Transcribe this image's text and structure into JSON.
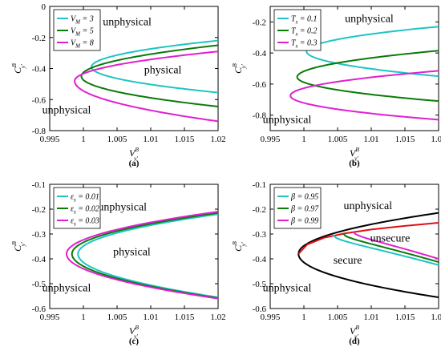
{
  "chart_data": [
    {
      "type": "line",
      "panel_label": "(a)",
      "xlabel": "V",
      "xlabel_sup": "B",
      "xlabel_sub": "y′",
      "ylabel": "C",
      "ylabel_sup": "B",
      "ylabel_sub": "y′",
      "xlim": [
        0.995,
        1.02
      ],
      "ylim": [
        -0.8,
        0
      ],
      "xticks": [
        0.995,
        1,
        1.005,
        1.01,
        1.015,
        1.02
      ],
      "xtick_labels": [
        "0.995",
        "1",
        "1.005",
        "1.01",
        "1.015",
        "1.02"
      ],
      "yticks": [
        0,
        -0.2,
        -0.4,
        -0.6,
        -0.8
      ],
      "ytick_labels": [
        "0",
        "-0.2",
        "-0.4",
        "-0.6",
        "-0.8"
      ],
      "legend_position": "top-left",
      "series": [
        {
          "name": "V_M = 3",
          "label_main": "V",
          "label_sub": "M",
          "label_rest": " = 3",
          "color": "#1fc4c4",
          "vertex": [
            1.0012,
            -0.39
          ],
          "upper_end": -0.22,
          "lower_end": -0.555
        },
        {
          "name": "V_M = 5",
          "label_main": "V",
          "label_sub": "M",
          "label_rest": " = 5",
          "color": "#0a7a0a",
          "vertex": [
            0.9997,
            -0.45
          ],
          "upper_end": -0.25,
          "lower_end": -0.645
        },
        {
          "name": "V_M = 8",
          "label_main": "V",
          "label_sub": "M",
          "label_rest": " = 8",
          "color": "#e020d0",
          "vertex": [
            0.9987,
            -0.48
          ],
          "upper_end": -0.29,
          "lower_end": -0.74
        }
      ],
      "extra_lines": [],
      "annotations": [
        {
          "text": "unphysical",
          "x": 1.0065,
          "y": -0.12
        },
        {
          "text": "physical",
          "x": 1.0118,
          "y": -0.43
        },
        {
          "text": "unphysical",
          "x": 0.9975,
          "y": -0.69
        }
      ]
    },
    {
      "type": "line",
      "panel_label": "(b)",
      "xlabel": "V",
      "xlabel_sup": "B",
      "xlabel_sub": "y′",
      "ylabel": "C",
      "ylabel_sup": "B",
      "ylabel_sub": "y′",
      "xlim": [
        0.995,
        1.02
      ],
      "ylim": [
        -0.9,
        -0.1
      ],
      "xticks": [
        0.995,
        1,
        1.005,
        1.01,
        1.015,
        1.02
      ],
      "xtick_labels": [
        "0.995",
        "1",
        "1.005",
        "1.01",
        "1.015",
        "1.02"
      ],
      "yticks": [
        -0.2,
        -0.4,
        -0.6,
        -0.8
      ],
      "ytick_labels": [
        "-0.2",
        "-0.4",
        "-0.6",
        "-0.8"
      ],
      "legend_position": "top-left",
      "series": [
        {
          "name": "T_s = 0.1",
          "label_main": "T",
          "label_sub": "s",
          "label_rest": " = 0.1",
          "color": "#1fc4c4",
          "vertex": [
            1.0004,
            -0.39
          ],
          "upper_end": -0.23,
          "lower_end": -0.55
        },
        {
          "name": "T_s = 0.2",
          "label_main": "T",
          "label_sub": "s",
          "label_rest": " = 0.2",
          "color": "#0a7a0a",
          "vertex": [
            0.999,
            -0.555
          ],
          "upper_end": -0.385,
          "lower_end": -0.71
        },
        {
          "name": "T_s = 0.3",
          "label_main": "T",
          "label_sub": "s",
          "label_rest": " = 0.3",
          "color": "#e020d0",
          "vertex": [
            0.998,
            -0.675
          ],
          "upper_end": -0.515,
          "lower_end": -0.83
        }
      ],
      "extra_lines": [],
      "annotations": [
        {
          "text": "unphysical",
          "x": 1.0097,
          "y": -0.2
        },
        {
          "text": "unphysical",
          "x": 0.9975,
          "y": -0.85
        }
      ]
    },
    {
      "type": "line",
      "panel_label": "(c)",
      "xlabel": "V",
      "xlabel_sup": "B",
      "xlabel_sub": "y′",
      "ylabel": "C",
      "ylabel_sup": "B",
      "ylabel_sub": "y′",
      "xlim": [
        0.995,
        1.02
      ],
      "ylim": [
        -0.6,
        -0.1
      ],
      "xticks": [
        0.995,
        1,
        1.005,
        1.01,
        1.015,
        1.02
      ],
      "xtick_labels": [
        "0.995",
        "1",
        "1.005",
        "1.01",
        "1.015",
        "1.02"
      ],
      "yticks": [
        -0.1,
        -0.2,
        -0.3,
        -0.4,
        -0.5,
        -0.6
      ],
      "ytick_labels": [
        "-0.1",
        "-0.2",
        "-0.3",
        "-0.4",
        "-0.5",
        "-0.6"
      ],
      "legend_position": "top-left",
      "series": [
        {
          "name": "ε_s = 0.01",
          "label_main": "ε",
          "label_sub": "s",
          "label_rest": " = 0.01",
          "color": "#1fc4c4",
          "vertex": [
            0.9992,
            -0.38
          ],
          "upper_end": -0.22,
          "lower_end": -0.555
        },
        {
          "name": "ε_s = 0.02",
          "label_main": "ε",
          "label_sub": "s",
          "label_rest": " = 0.02",
          "color": "#0a7a0a",
          "vertex": [
            0.9983,
            -0.38
          ],
          "upper_end": -0.215,
          "lower_end": -0.558
        },
        {
          "name": "ε_s = 0.03",
          "label_main": "ε",
          "label_sub": "s",
          "label_rest": " = 0.03",
          "color": "#e020d0",
          "vertex": [
            0.9975,
            -0.38
          ],
          "upper_end": -0.21,
          "lower_end": -0.56
        }
      ],
      "extra_lines": [],
      "annotations": [
        {
          "text": "unphysical",
          "x": 1.0058,
          "y": -0.205
        },
        {
          "text": "physical",
          "x": 1.0072,
          "y": -0.385
        },
        {
          "text": "unphysical",
          "x": 0.9975,
          "y": -0.53
        }
      ]
    },
    {
      "type": "line",
      "panel_label": "(d)",
      "xlabel": "V",
      "xlabel_sup": "B",
      "xlabel_sub": "y′",
      "ylabel": "C",
      "ylabel_sup": "B",
      "ylabel_sub": "y′",
      "xlim": [
        0.995,
        1.02
      ],
      "ylim": [
        -0.6,
        -0.1
      ],
      "xticks": [
        0.995,
        1,
        1.005,
        1.01,
        1.015,
        1.02
      ],
      "xtick_labels": [
        "0.995",
        "1",
        "1.005",
        "1.01",
        "1.015",
        "1.02"
      ],
      "yticks": [
        -0.1,
        -0.2,
        -0.3,
        -0.4,
        -0.5,
        -0.6
      ],
      "ytick_labels": [
        "-0.1",
        "-0.2",
        "-0.3",
        "-0.4",
        "-0.5",
        "-0.6"
      ],
      "legend_position": "top-left",
      "series": [
        {
          "name": "β = 0.95",
          "label_main": "β",
          "label_sub": "",
          "label_rest": " = 0.95",
          "color": "#1fc4c4",
          "start": [
            1.0044,
            -0.305
          ],
          "end": [
            1.02,
            -0.425
          ]
        },
        {
          "name": "β = 0.97",
          "label_main": "β",
          "label_sub": "",
          "label_rest": " = 0.97",
          "color": "#0a7a0a",
          "start": [
            1.0058,
            -0.297
          ],
          "end": [
            1.02,
            -0.413
          ]
        },
        {
          "name": "β = 0.99",
          "label_main": "β",
          "label_sub": "",
          "label_rest": " = 0.99",
          "color": "#e020d0",
          "start": [
            1.0073,
            -0.29
          ],
          "end": [
            1.02,
            -0.4
          ]
        }
      ],
      "extra_lines": [
        {
          "color": "#000000",
          "vertex": [
            0.9992,
            -0.38
          ],
          "upper_end": -0.215,
          "lower_end": -0.555
        },
        {
          "color": "#e01010",
          "curve": "red-branch",
          "points": [
            [
              0.9992,
              -0.38
            ],
            [
              1.0005,
              -0.342
            ],
            [
              1.003,
              -0.315
            ],
            [
              1.006,
              -0.298
            ],
            [
              1.01,
              -0.282
            ],
            [
              1.014,
              -0.27
            ],
            [
              1.02,
              -0.255
            ]
          ]
        }
      ],
      "annotations": [
        {
          "text": "unphysical",
          "x": 1.0095,
          "y": -0.2
        },
        {
          "text": "unsecure",
          "x": 1.0128,
          "y": -0.33
        },
        {
          "text": "secure",
          "x": 1.0065,
          "y": -0.42
        },
        {
          "text": "unphysical",
          "x": 0.9975,
          "y": -0.53
        }
      ]
    }
  ]
}
